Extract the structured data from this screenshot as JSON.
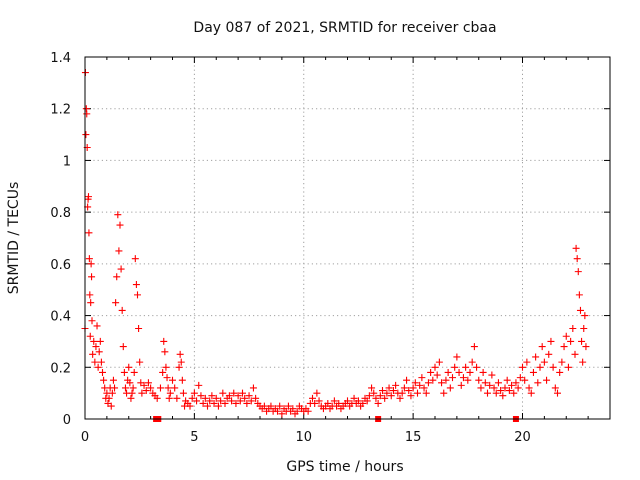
{
  "chart_data": {
    "type": "scatter",
    "title": "Day 087 of 2021, SRMTID for receiver cbaa",
    "xlabel": "GPS time / hours",
    "ylabel": "SRMTID / TECUs",
    "xlim": [
      0,
      24
    ],
    "ylim": [
      0,
      1.4
    ],
    "x_ticks": [
      0,
      5,
      10,
      15,
      20
    ],
    "x_tick_labels": [
      "0",
      "5",
      "10",
      "15",
      "20"
    ],
    "y_ticks": [
      0,
      0.2,
      0.4,
      0.6,
      0.8,
      1.0,
      1.2,
      1.4
    ],
    "y_tick_labels": [
      "0",
      "0.2",
      "0.4",
      "0.6",
      "0.8",
      "1",
      "1.2",
      "1.4"
    ],
    "grid": true,
    "marker": "plus",
    "color": "#ff0000",
    "series": [
      {
        "name": "SRMTID",
        "points": [
          [
            0.0,
            0.35
          ],
          [
            0.02,
            1.34
          ],
          [
            0.04,
            1.1
          ],
          [
            0.06,
            1.2
          ],
          [
            0.08,
            1.18
          ],
          [
            0.1,
            1.05
          ],
          [
            0.12,
            0.82
          ],
          [
            0.14,
            0.85
          ],
          [
            0.16,
            0.86
          ],
          [
            0.18,
            0.72
          ],
          [
            0.2,
            0.62
          ],
          [
            0.22,
            0.48
          ],
          [
            0.24,
            0.32
          ],
          [
            0.26,
            0.45
          ],
          [
            0.28,
            0.6
          ],
          [
            0.3,
            0.55
          ],
          [
            0.32,
            0.38
          ],
          [
            0.35,
            0.25
          ],
          [
            0.4,
            0.3
          ],
          [
            0.45,
            0.22
          ],
          [
            0.5,
            0.28
          ],
          [
            0.55,
            0.36
          ],
          [
            0.6,
            0.2
          ],
          [
            0.65,
            0.26
          ],
          [
            0.7,
            0.3
          ],
          [
            0.75,
            0.22
          ],
          [
            0.8,
            0.18
          ],
          [
            0.85,
            0.15
          ],
          [
            0.9,
            0.12
          ],
          [
            0.95,
            0.08
          ],
          [
            1.0,
            0.1
          ],
          [
            1.05,
            0.06
          ],
          [
            1.1,
            0.08
          ],
          [
            1.15,
            0.12
          ],
          [
            1.2,
            0.05
          ],
          [
            1.25,
            0.1
          ],
          [
            1.3,
            0.15
          ],
          [
            1.35,
            0.12
          ],
          [
            1.4,
            0.45
          ],
          [
            1.45,
            0.55
          ],
          [
            1.5,
            0.79
          ],
          [
            1.55,
            0.65
          ],
          [
            1.6,
            0.75
          ],
          [
            1.65,
            0.58
          ],
          [
            1.7,
            0.42
          ],
          [
            1.75,
            0.28
          ],
          [
            1.8,
            0.18
          ],
          [
            1.85,
            0.12
          ],
          [
            1.9,
            0.1
          ],
          [
            1.95,
            0.15
          ],
          [
            2.0,
            0.2
          ],
          [
            2.05,
            0.14
          ],
          [
            2.1,
            0.08
          ],
          [
            2.15,
            0.1
          ],
          [
            2.2,
            0.12
          ],
          [
            2.25,
            0.18
          ],
          [
            2.3,
            0.62
          ],
          [
            2.35,
            0.52
          ],
          [
            2.4,
            0.48
          ],
          [
            2.45,
            0.35
          ],
          [
            2.5,
            0.22
          ],
          [
            2.55,
            0.14
          ],
          [
            2.6,
            0.1
          ],
          [
            2.7,
            0.13
          ],
          [
            2.8,
            0.11
          ],
          [
            2.9,
            0.14
          ],
          [
            3.0,
            0.12
          ],
          [
            3.1,
            0.1
          ],
          [
            3.2,
            0.09
          ],
          [
            3.3,
            0.08
          ],
          [
            3.45,
            0.12
          ],
          [
            3.55,
            0.18
          ],
          [
            3.6,
            0.3
          ],
          [
            3.65,
            0.26
          ],
          [
            3.7,
            0.2
          ],
          [
            3.75,
            0.16
          ],
          [
            3.8,
            0.12
          ],
          [
            3.85,
            0.08
          ],
          [
            3.9,
            0.1
          ],
          [
            4.0,
            0.15
          ],
          [
            4.1,
            0.12
          ],
          [
            4.2,
            0.08
          ],
          [
            4.3,
            0.2
          ],
          [
            4.35,
            0.25
          ],
          [
            4.4,
            0.22
          ],
          [
            4.45,
            0.15
          ],
          [
            4.5,
            0.1
          ],
          [
            4.55,
            0.05
          ],
          [
            4.6,
            0.07
          ],
          [
            4.7,
            0.06
          ],
          [
            4.8,
            0.05
          ],
          [
            4.9,
            0.08
          ],
          [
            5.0,
            0.1
          ],
          [
            5.1,
            0.07
          ],
          [
            5.2,
            0.13
          ],
          [
            5.3,
            0.09
          ],
          [
            5.4,
            0.06
          ],
          [
            5.5,
            0.08
          ],
          [
            5.6,
            0.05
          ],
          [
            5.7,
            0.07
          ],
          [
            5.8,
            0.09
          ],
          [
            5.9,
            0.06
          ],
          [
            6.0,
            0.08
          ],
          [
            6.1,
            0.05
          ],
          [
            6.2,
            0.07
          ],
          [
            6.3,
            0.1
          ],
          [
            6.4,
            0.06
          ],
          [
            6.5,
            0.08
          ],
          [
            6.6,
            0.09
          ],
          [
            6.7,
            0.07
          ],
          [
            6.8,
            0.1
          ],
          [
            6.9,
            0.06
          ],
          [
            7.0,
            0.09
          ],
          [
            7.1,
            0.07
          ],
          [
            7.2,
            0.1
          ],
          [
            7.3,
            0.08
          ],
          [
            7.4,
            0.06
          ],
          [
            7.5,
            0.09
          ],
          [
            7.6,
            0.07
          ],
          [
            7.7,
            0.12
          ],
          [
            7.8,
            0.08
          ],
          [
            7.9,
            0.06
          ],
          [
            8.0,
            0.05
          ],
          [
            8.1,
            0.04
          ],
          [
            8.2,
            0.05
          ],
          [
            8.3,
            0.03
          ],
          [
            8.4,
            0.04
          ],
          [
            8.5,
            0.05
          ],
          [
            8.6,
            0.03
          ],
          [
            8.7,
            0.04
          ],
          [
            8.8,
            0.03
          ],
          [
            8.9,
            0.05
          ],
          [
            9.0,
            0.02
          ],
          [
            9.1,
            0.04
          ],
          [
            9.2,
            0.03
          ],
          [
            9.3,
            0.05
          ],
          [
            9.4,
            0.03
          ],
          [
            9.5,
            0.04
          ],
          [
            9.6,
            0.02
          ],
          [
            9.7,
            0.03
          ],
          [
            9.8,
            0.05
          ],
          [
            9.9,
            0.04
          ],
          [
            10.0,
            0.03
          ],
          [
            10.1,
            0.04
          ],
          [
            10.2,
            0.03
          ],
          [
            10.3,
            0.06
          ],
          [
            10.4,
            0.08
          ],
          [
            10.5,
            0.06
          ],
          [
            10.6,
            0.1
          ],
          [
            10.7,
            0.07
          ],
          [
            10.8,
            0.05
          ],
          [
            10.9,
            0.04
          ],
          [
            11.0,
            0.05
          ],
          [
            11.1,
            0.06
          ],
          [
            11.2,
            0.04
          ],
          [
            11.3,
            0.05
          ],
          [
            11.4,
            0.07
          ],
          [
            11.5,
            0.05
          ],
          [
            11.6,
            0.06
          ],
          [
            11.7,
            0.04
          ],
          [
            11.8,
            0.05
          ],
          [
            11.9,
            0.06
          ],
          [
            12.0,
            0.07
          ],
          [
            12.1,
            0.05
          ],
          [
            12.2,
            0.06
          ],
          [
            12.3,
            0.08
          ],
          [
            12.4,
            0.06
          ],
          [
            12.5,
            0.07
          ],
          [
            12.6,
            0.05
          ],
          [
            12.7,
            0.06
          ],
          [
            12.8,
            0.08
          ],
          [
            12.9,
            0.07
          ],
          [
            13.0,
            0.09
          ],
          [
            13.1,
            0.12
          ],
          [
            13.2,
            0.1
          ],
          [
            13.3,
            0.08
          ],
          [
            13.4,
            0.06
          ],
          [
            13.5,
            0.09
          ],
          [
            13.6,
            0.11
          ],
          [
            13.7,
            0.08
          ],
          [
            13.8,
            0.1
          ],
          [
            13.9,
            0.12
          ],
          [
            14.0,
            0.09
          ],
          [
            14.1,
            0.11
          ],
          [
            14.2,
            0.13
          ],
          [
            14.3,
            0.1
          ],
          [
            14.4,
            0.08
          ],
          [
            14.5,
            0.1
          ],
          [
            14.6,
            0.12
          ],
          [
            14.7,
            0.15
          ],
          [
            14.8,
            0.11
          ],
          [
            14.9,
            0.09
          ],
          [
            15.0,
            0.12
          ],
          [
            15.1,
            0.14
          ],
          [
            15.2,
            0.1
          ],
          [
            15.3,
            0.13
          ],
          [
            15.4,
            0.16
          ],
          [
            15.5,
            0.12
          ],
          [
            15.6,
            0.1
          ],
          [
            15.7,
            0.14
          ],
          [
            15.8,
            0.18
          ],
          [
            15.9,
            0.15
          ],
          [
            16.0,
            0.2
          ],
          [
            16.1,
            0.17
          ],
          [
            16.2,
            0.22
          ],
          [
            16.3,
            0.14
          ],
          [
            16.4,
            0.1
          ],
          [
            16.5,
            0.15
          ],
          [
            16.6,
            0.18
          ],
          [
            16.7,
            0.12
          ],
          [
            16.8,
            0.16
          ],
          [
            16.9,
            0.2
          ],
          [
            17.0,
            0.24
          ],
          [
            17.1,
            0.18
          ],
          [
            17.2,
            0.13
          ],
          [
            17.3,
            0.16
          ],
          [
            17.4,
            0.2
          ],
          [
            17.5,
            0.15
          ],
          [
            17.6,
            0.18
          ],
          [
            17.7,
            0.22
          ],
          [
            17.8,
            0.28
          ],
          [
            17.9,
            0.2
          ],
          [
            18.0,
            0.15
          ],
          [
            18.1,
            0.12
          ],
          [
            18.2,
            0.18
          ],
          [
            18.3,
            0.14
          ],
          [
            18.4,
            0.1
          ],
          [
            18.5,
            0.13
          ],
          [
            18.6,
            0.17
          ],
          [
            18.7,
            0.12
          ],
          [
            18.8,
            0.1
          ],
          [
            18.9,
            0.14
          ],
          [
            19.0,
            0.11
          ],
          [
            19.1,
            0.09
          ],
          [
            19.2,
            0.12
          ],
          [
            19.3,
            0.15
          ],
          [
            19.4,
            0.11
          ],
          [
            19.5,
            0.13
          ],
          [
            19.6,
            0.1
          ],
          [
            19.7,
            0.14
          ],
          [
            19.8,
            0.12
          ],
          [
            19.9,
            0.16
          ],
          [
            20.0,
            0.2
          ],
          [
            20.1,
            0.15
          ],
          [
            20.2,
            0.22
          ],
          [
            20.3,
            0.12
          ],
          [
            20.4,
            0.1
          ],
          [
            20.5,
            0.18
          ],
          [
            20.6,
            0.24
          ],
          [
            20.7,
            0.14
          ],
          [
            20.8,
            0.2
          ],
          [
            20.9,
            0.28
          ],
          [
            21.0,
            0.22
          ],
          [
            21.1,
            0.15
          ],
          [
            21.2,
            0.25
          ],
          [
            21.3,
            0.3
          ],
          [
            21.4,
            0.2
          ],
          [
            21.5,
            0.12
          ],
          [
            21.6,
            0.1
          ],
          [
            21.7,
            0.18
          ],
          [
            21.8,
            0.22
          ],
          [
            21.9,
            0.28
          ],
          [
            22.0,
            0.32
          ],
          [
            22.1,
            0.2
          ],
          [
            22.2,
            0.3
          ],
          [
            22.3,
            0.35
          ],
          [
            22.4,
            0.25
          ],
          [
            22.45,
            0.66
          ],
          [
            22.5,
            0.62
          ],
          [
            22.55,
            0.57
          ],
          [
            22.6,
            0.48
          ],
          [
            22.65,
            0.42
          ],
          [
            22.7,
            0.3
          ],
          [
            22.75,
            0.22
          ],
          [
            22.8,
            0.35
          ],
          [
            22.85,
            0.4
          ],
          [
            22.9,
            0.28
          ]
        ]
      }
    ],
    "flag_markers": [
      3.25,
      3.3,
      3.35,
      13.4,
      19.7
    ]
  }
}
